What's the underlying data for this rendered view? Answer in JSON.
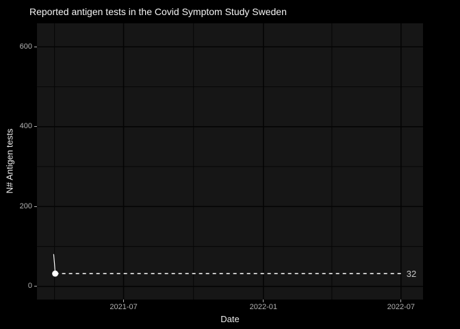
{
  "colors": {
    "background": "#000000",
    "panel_background": "#161616",
    "gridline_major": "#040404",
    "gridline_minor": "#070707",
    "title_text": "#f5f5f5",
    "axis_title_text": "#ececec",
    "tick_text": "#b3b3b3",
    "tick_mark": "#b3b3b3",
    "series": "#ffffff",
    "annotation_line": "#ededed",
    "annotation_text": "#c6c6c6"
  },
  "chart_data": {
    "type": "line",
    "title": "Reported antigen tests in the Covid Symptom Study Sweden",
    "xlabel": "Date",
    "ylabel": "N# Antigen tests",
    "legend": "none",
    "grid": "on",
    "x_domain": [
      "2021-03-09",
      "2022-07-30"
    ],
    "y_domain": [
      -33,
      659
    ],
    "y_ticks": [
      {
        "value": 0,
        "label": "0"
      },
      {
        "value": 200,
        "label": "200"
      },
      {
        "value": 400,
        "label": "400"
      },
      {
        "value": 600,
        "label": "600"
      }
    ],
    "y_minor_ticks": [
      100,
      300,
      500
    ],
    "x_ticks": [
      {
        "date": "2021-07-01",
        "label": "2021-07"
      },
      {
        "date": "2022-01-01",
        "label": "2022-01"
      },
      {
        "date": "2022-07-01",
        "label": "2022-07"
      }
    ],
    "x_minor_ticks": [
      "2021-04-01",
      "2021-10-01",
      "2022-04-01"
    ],
    "series": [
      {
        "name": "Reported antigen tests",
        "color": "#ffffff",
        "points": [
          {
            "date": "2021-03-31",
            "value": 80
          },
          {
            "date": "2021-04-01",
            "value": 58
          },
          {
            "date": "2021-04-02",
            "value": 32
          }
        ]
      }
    ],
    "last_point": {
      "date": "2021-04-02",
      "value": 32
    },
    "annotation": {
      "type": "dashed-hline",
      "value": 32,
      "label": "32",
      "from_date": "2021-04-02",
      "to_date": "2022-07-01"
    }
  }
}
